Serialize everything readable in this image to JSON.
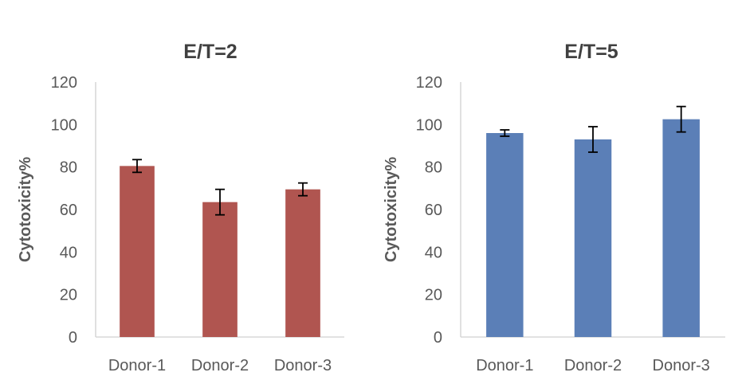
{
  "chart_data": [
    {
      "type": "bar",
      "title": "E/T=2",
      "xlabel": "",
      "ylabel": "Cytotoxicity%",
      "categories": [
        "Donor-1",
        "Donor-2",
        "Donor-3"
      ],
      "values": [
        80.5,
        63.5,
        69.5
      ],
      "errors": [
        3,
        6,
        3
      ],
      "ylim": [
        0,
        120
      ],
      "yticks": [
        0,
        20,
        40,
        60,
        80,
        100,
        120
      ],
      "color": "#b05550",
      "grid": false,
      "legend": "none"
    },
    {
      "type": "bar",
      "title": "E/T=5",
      "xlabel": "",
      "ylabel": "Cytotoxicity%",
      "categories": [
        "Donor-1",
        "Donor-2",
        "Donor-3"
      ],
      "values": [
        96,
        93,
        102.5
      ],
      "errors": [
        1.5,
        6,
        6
      ],
      "ylim": [
        0,
        120
      ],
      "yticks": [
        0,
        20,
        40,
        60,
        80,
        100,
        120
      ],
      "color": "#5b7fb7",
      "grid": false,
      "legend": "none"
    }
  ]
}
